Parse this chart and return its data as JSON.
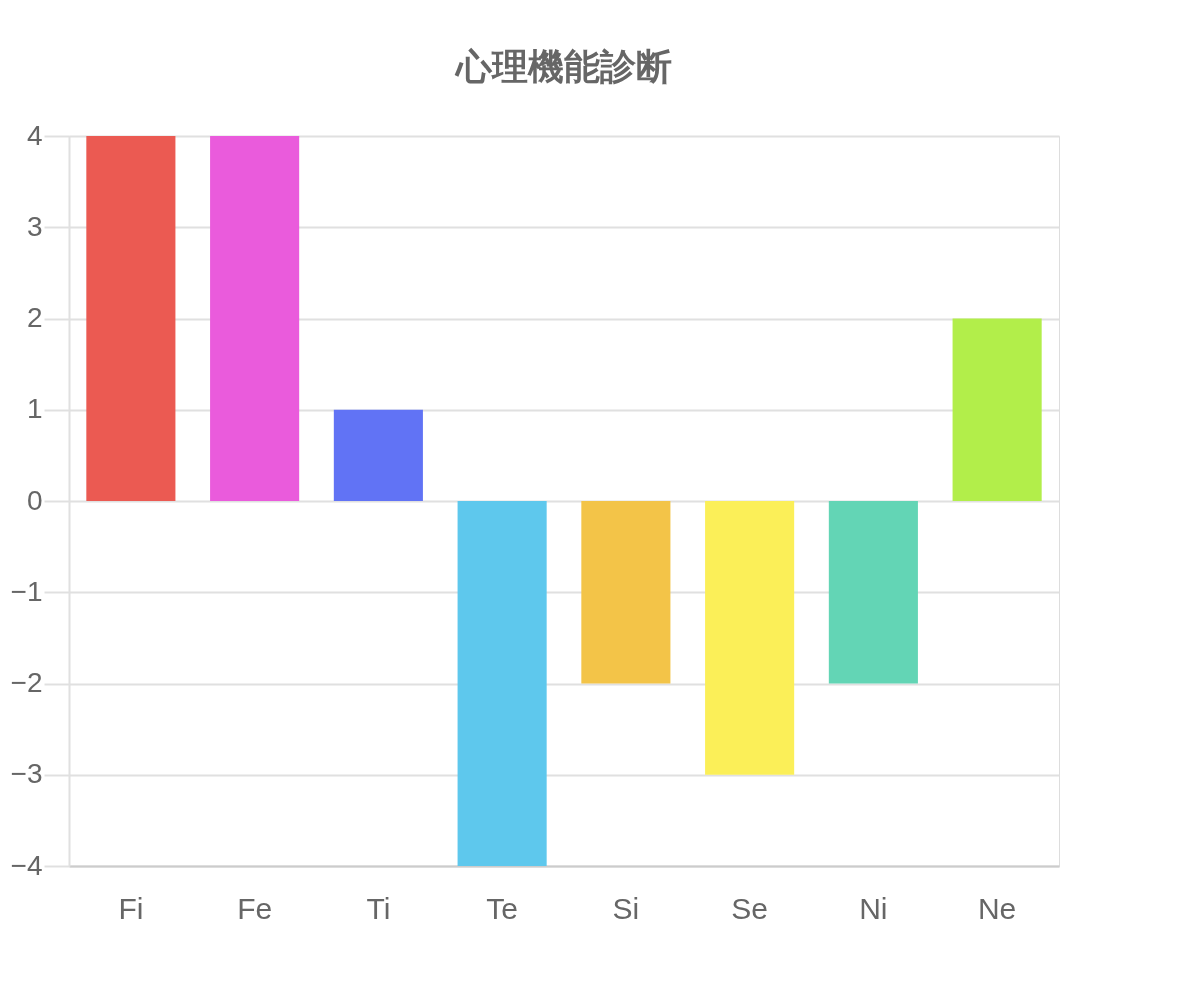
{
  "chart_data": {
    "type": "bar",
    "title": "心理機能診断",
    "categories": [
      "Fi",
      "Fe",
      "Ti",
      "Te",
      "Si",
      "Se",
      "Ni",
      "Ne"
    ],
    "values": [
      4,
      4,
      1,
      -4,
      -2,
      -3,
      -2,
      2
    ],
    "colors": [
      "#eb5a52",
      "#ea5bdc",
      "#6173f5",
      "#5ec8ed",
      "#f3c448",
      "#fbef58",
      "#63d5b5",
      "#b2ee4a"
    ],
    "ylim": [
      -4,
      4
    ],
    "yticks": [
      -4,
      -3,
      -2,
      -1,
      0,
      1,
      2,
      3,
      4
    ],
    "grid": "y",
    "legend": false
  }
}
